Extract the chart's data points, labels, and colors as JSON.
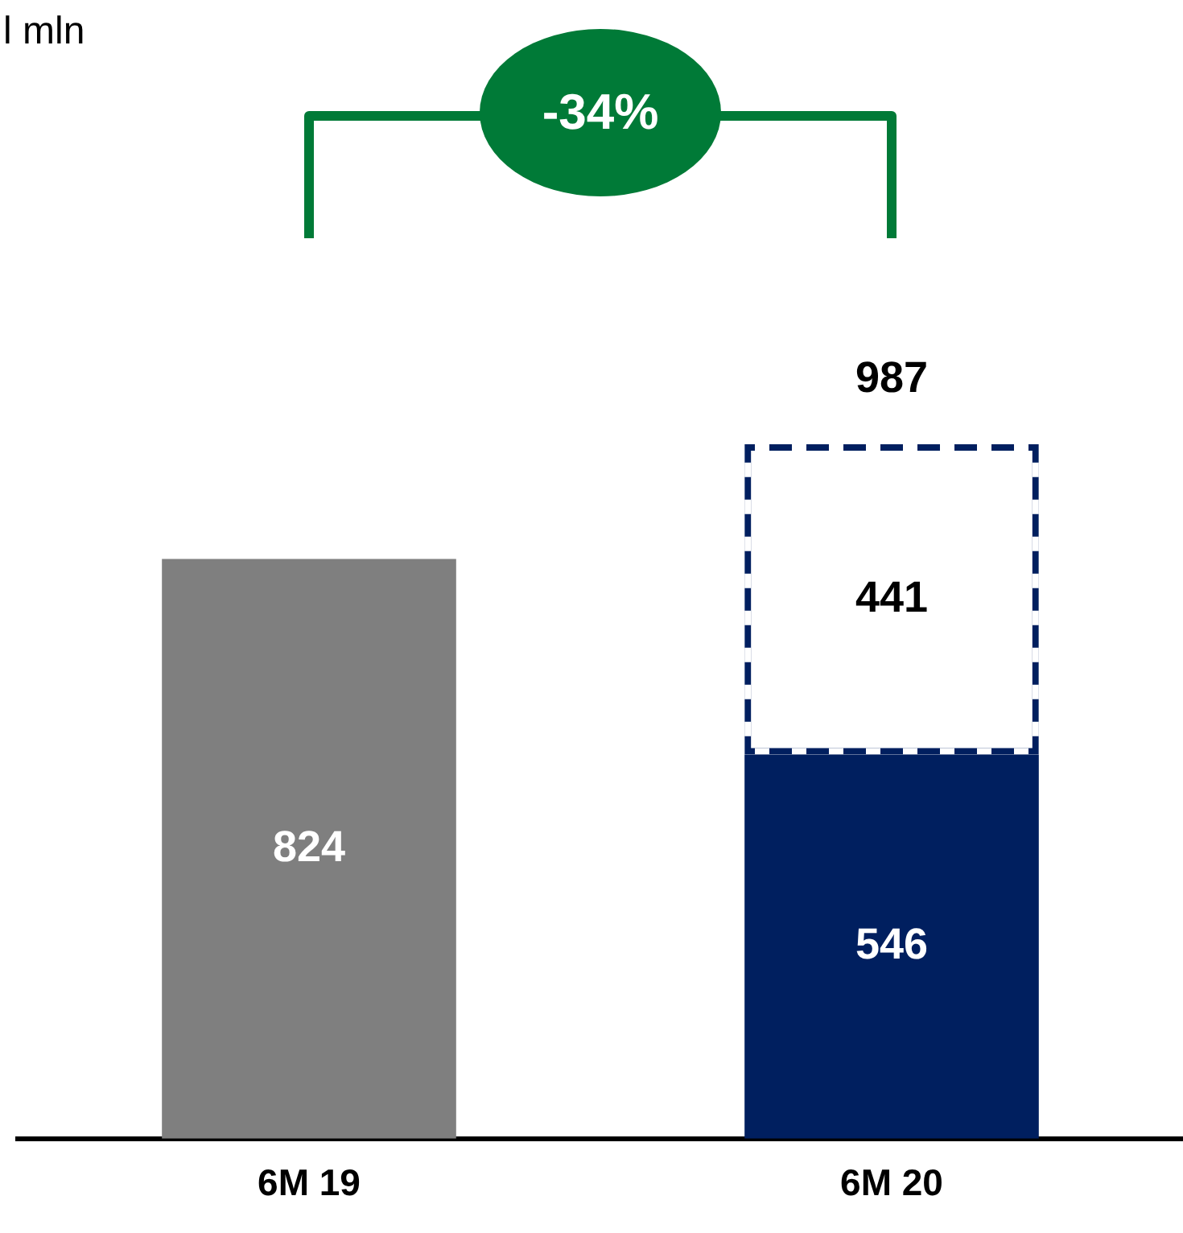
{
  "chart_data": {
    "type": "bar",
    "categories": [
      "6M 19",
      "6M 20"
    ],
    "stacked": true,
    "series": [
      {
        "colors": [
          "#7f7f7f",
          "#001f5f"
        ],
        "values": [
          824,
          546
        ]
      },
      {
        "color": "#001f5f",
        "line_style": "dashed",
        "values": [
          null,
          441
        ]
      }
    ],
    "totals": [
      null,
      "987"
    ],
    "data_labels": true,
    "annotations": [
      "l mln",
      "-34%"
    ]
  }
}
